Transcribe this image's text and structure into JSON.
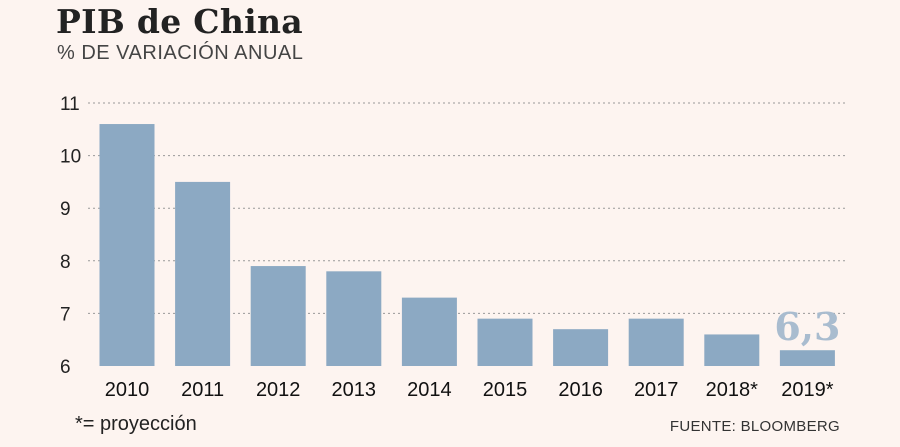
{
  "header": {
    "title": "PIB de China",
    "subtitle": "% DE VARIACIÓN ANUAL"
  },
  "footer": {
    "footnote": "*= proyección",
    "source": "FUENTE: BLOOMBERG"
  },
  "colors": {
    "bar": "#8ca9c3",
    "grid": "#999999",
    "highlight_label": "#a9bccf"
  },
  "chart_data": {
    "type": "bar",
    "categories": [
      "2010",
      "2011",
      "2012",
      "2013",
      "2014",
      "2015",
      "2016",
      "2017",
      "2018*",
      "2019*"
    ],
    "values": [
      10.6,
      9.5,
      7.9,
      7.8,
      7.3,
      6.9,
      6.7,
      6.9,
      6.6,
      6.3
    ],
    "ylim": [
      6,
      11
    ],
    "yticks": [
      "6",
      "7",
      "8",
      "9",
      "10",
      "11"
    ],
    "grid": true,
    "annotation": {
      "category": "2019*",
      "text": "6,3"
    }
  }
}
